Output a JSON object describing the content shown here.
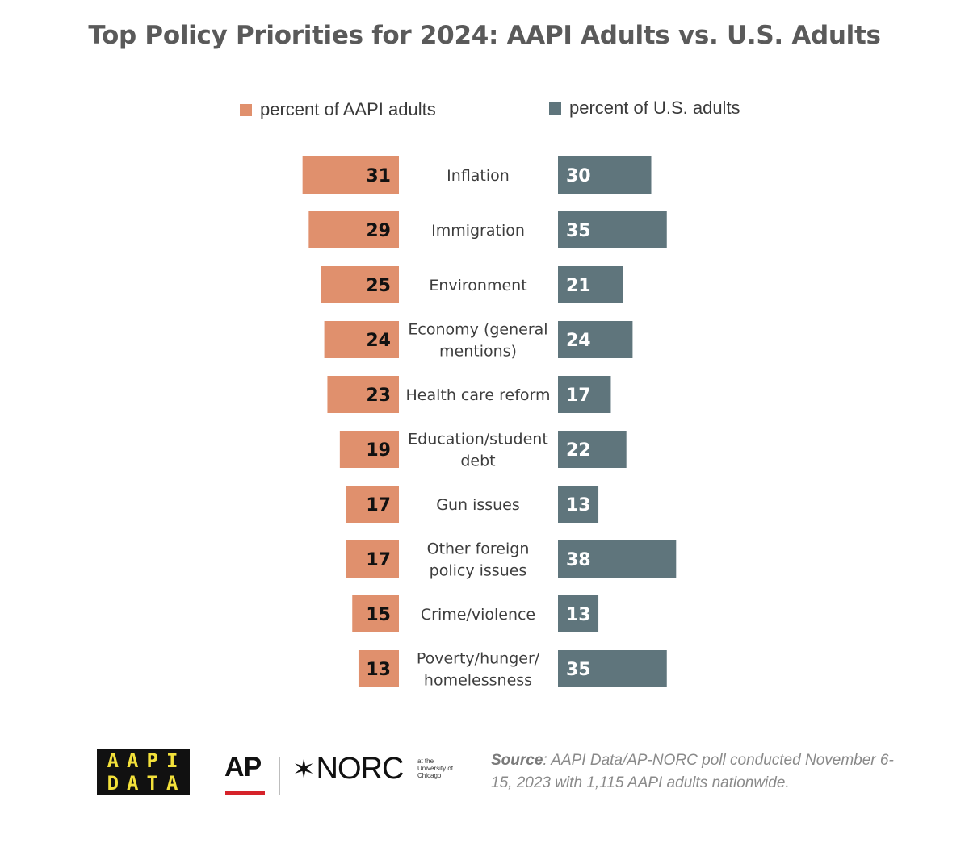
{
  "title": "Top Policy Priorities for 2024: AAPI Adults vs. U.S. Adults",
  "colors": {
    "aapi": "#e0906d",
    "us": "#5f757c",
    "text": "#3d3d3d"
  },
  "chart_data": {
    "type": "bar",
    "orientation": "horizontal-diverging",
    "title": "Top Policy Priorities for 2024: AAPI Adults vs. U.S. Adults",
    "categories": [
      "Inflation",
      "Immigration",
      "Environment",
      "Economy (general mentions)",
      "Health care reform",
      "Education/student debt",
      "Gun issues",
      "Other foreign policy issues",
      "Crime/violence",
      "Poverty/hunger/ homelessness"
    ],
    "category_lines": [
      [
        "Inflation"
      ],
      [
        "Immigration"
      ],
      [
        "Environment"
      ],
      [
        "Economy (general",
        "mentions)"
      ],
      [
        "Health care reform"
      ],
      [
        "Education/student",
        "debt"
      ],
      [
        "Gun issues"
      ],
      [
        "Other foreign",
        "policy issues"
      ],
      [
        "Crime/violence"
      ],
      [
        "Poverty/hunger/",
        "homelessness"
      ]
    ],
    "series": [
      {
        "name": "percent of AAPI adults",
        "color": "#e0906d",
        "values": [
          31,
          29,
          25,
          24,
          23,
          19,
          17,
          17,
          15,
          13
        ]
      },
      {
        "name": "percent of U.S. adults",
        "color": "#5f757c",
        "values": [
          30,
          35,
          21,
          24,
          17,
          22,
          13,
          38,
          13,
          35
        ]
      }
    ],
    "legend": "top"
  },
  "legend": {
    "aapi_label": "percent of AAPI adults",
    "us_label": "percent of U.S. adults"
  },
  "footer": {
    "aapi_logo_line1": "AAPI",
    "aapi_logo_line2": "DATA",
    "ap_logo": "AP",
    "norc_logo": "NORC",
    "norc_sub_line1": "at the",
    "norc_sub_line2": "University of",
    "norc_sub_line3": "Chicago",
    "source_label": "Source",
    "source_text": ": AAPI Data/AP-NORC poll conducted November 6-15, 2023 with 1,115 AAPI adults nationwide."
  }
}
